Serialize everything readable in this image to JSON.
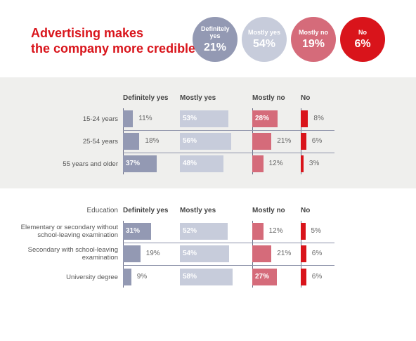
{
  "title_line1": "Advertising makes",
  "title_line2": "the company more credible",
  "summary": [
    {
      "label": "Definitely yes",
      "value": "21%",
      "color": "#9399b3"
    },
    {
      "label": "Mostly yes",
      "value": "54%",
      "color": "#c7ccdb"
    },
    {
      "label": "Mostly no",
      "value": "19%",
      "color": "#d56b7a"
    },
    {
      "label": "No",
      "value": "6%",
      "color": "#d9141b"
    }
  ],
  "chart_data": [
    {
      "type": "bar",
      "group_label": "",
      "columns": [
        "Definitely yes",
        "Mostly yes",
        "Mostly no",
        "No"
      ],
      "rows": [
        {
          "label": "15-24 years",
          "values": [
            11,
            53,
            28,
            8
          ]
        },
        {
          "label": "25-54 years",
          "values": [
            18,
            56,
            21,
            6
          ]
        },
        {
          "label": "55 years and older",
          "values": [
            37,
            48,
            12,
            3
          ]
        }
      ]
    },
    {
      "type": "bar",
      "group_label": "Education",
      "columns": [
        "Definitely yes",
        "Mostly yes",
        "Mostly no",
        "No"
      ],
      "rows": [
        {
          "label": "Elementary or secondary without school-leaving examination",
          "values": [
            31,
            52,
            12,
            5
          ]
        },
        {
          "label": "Secondary with school-leaving examination",
          "values": [
            19,
            54,
            21,
            6
          ]
        },
        {
          "label": "University degree",
          "values": [
            9,
            58,
            27,
            6
          ]
        }
      ]
    }
  ],
  "colors": {
    "definitely_yes": "#9399b3",
    "mostly_yes": "#c7ccdb",
    "mostly_no": "#d56b7a",
    "no": "#d9141b",
    "title": "#d9141b"
  }
}
